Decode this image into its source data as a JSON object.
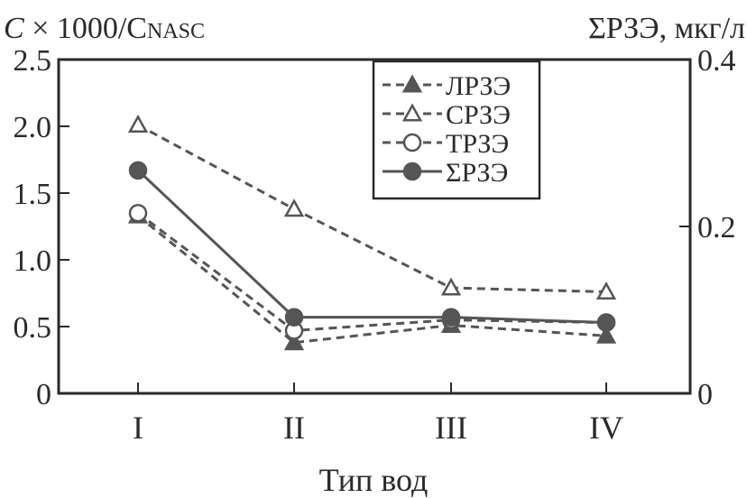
{
  "chart_data": {
    "type": "line",
    "ylabel_left_main": "C",
    "ylabel_left_rest": " × 1000/C",
    "ylabel_left_sub": "NASC",
    "ylabel_right": "ΣРЗЭ, мкг/л",
    "xlabel": "Тип вод",
    "categories": [
      "I",
      "II",
      "III",
      "IV"
    ],
    "ylim_left": [
      0,
      2.5
    ],
    "yticks_left": [
      "0",
      "0.5",
      "1.0",
      "1.5",
      "2.0",
      "2.5"
    ],
    "ylim_right": [
      0,
      0.4
    ],
    "yticks_right": [
      "0",
      "0.2",
      "0.4"
    ],
    "legend_position": "top-center",
    "series": [
      {
        "name": "ЛРЗЭ",
        "marker": "triangle-filled",
        "dash": true,
        "values": [
          1.33,
          0.38,
          0.51,
          0.43
        ]
      },
      {
        "name": "СРЗЭ",
        "marker": "triangle-open",
        "dash": true,
        "values": [
          2.01,
          1.38,
          0.79,
          0.76
        ]
      },
      {
        "name": "ТРЗЭ",
        "marker": "circle-open",
        "dash": true,
        "values": [
          1.35,
          0.47,
          0.55,
          0.53
        ]
      },
      {
        "name": "ΣРЗЭ",
        "marker": "circle-filled",
        "dash": false,
        "values": [
          1.67,
          0.57,
          0.57,
          0.53
        ]
      }
    ],
    "colors": {
      "line": "#555555",
      "axis": "#2a2a2a"
    }
  }
}
